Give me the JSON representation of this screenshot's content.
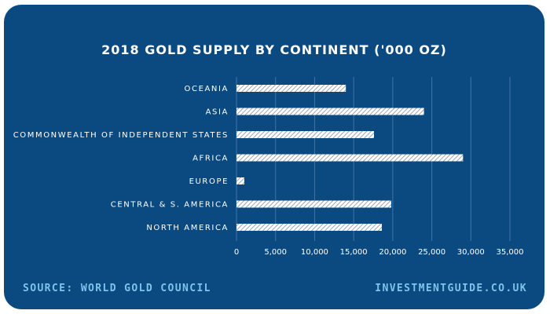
{
  "colors": {
    "background": "#0b4a80",
    "bar_fill": "#ffffff",
    "bar_hatch": "#9aa7b4",
    "grid": "#3f74a6",
    "footer_text": "#7ec3ea"
  },
  "footer": {
    "source": "SOURCE: WORLD GOLD COUNCIL",
    "site": "INVESTMENTGUIDE.CO.UK"
  },
  "chart_data": {
    "type": "bar",
    "orientation": "horizontal",
    "title": "2018 GOLD SUPPLY BY CONTINENT ('000 OZ)",
    "xlabel": "",
    "ylabel": "",
    "categories": [
      "OCEANIA",
      "ASIA",
      "COMMONWEALTH OF INDEPENDENT STATES",
      "AFRICA",
      "EUROPE",
      "CENTRAL & S. AMERICA",
      "NORTH AMERICA"
    ],
    "values": [
      14000,
      24000,
      17600,
      29000,
      1000,
      19800,
      18600
    ],
    "xlim": [
      0,
      35000
    ],
    "xticks": [
      0,
      5000,
      10000,
      15000,
      20000,
      25000,
      30000,
      35000
    ],
    "xtick_labels": [
      "0",
      "5,000",
      "10,000",
      "15,000",
      "20,000",
      "25,000",
      "30,000",
      "35,000"
    ],
    "grid": true,
    "legend": "none"
  }
}
